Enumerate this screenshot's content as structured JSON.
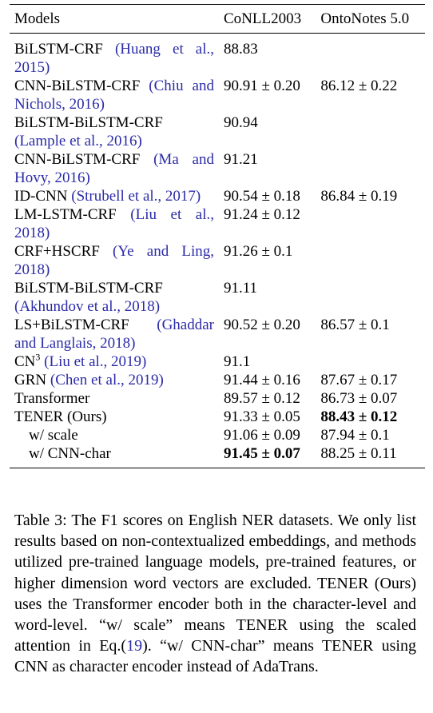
{
  "table": {
    "header": [
      "Models",
      "CoNLL2003",
      "OntoNotes 5.0"
    ],
    "rows": [
      {
        "model": "BiLSTM-CRF",
        "cite": "(Huang et al., 2015)",
        "conll": "88.83"
      },
      {
        "model": "CNN-BiLSTM-CRF",
        "cite": "(Chiu and Nichols, 2016)",
        "conll": "90.91 ± 0.20",
        "onto": "86.12 ± 0.22"
      },
      {
        "model": "BiLSTM-BiLSTM-CRF",
        "cite": "(Lample et al., 2016)",
        "conll": "90.94"
      },
      {
        "model": "CNN-BiLSTM-CRF",
        "cite": "(Ma and Hovy, 2016)",
        "conll": "91.21"
      },
      {
        "model": "ID-CNN",
        "cite": "(Strubell et al., 2017)",
        "conll": "90.54 ± 0.18",
        "onto": "86.84 ± 0.19"
      },
      {
        "model": "LM-LSTM-CRF",
        "cite": "(Liu et al., 2018)",
        "conll": "91.24 ± 0.12"
      },
      {
        "model": "CRF+HSCRF",
        "cite": "(Ye and Ling, 2018)",
        "conll": "91.26 ± 0.1"
      },
      {
        "model": "BiLSTM-BiLSTM-CRF",
        "cite": "(Akhundov et al., 2018)",
        "conll": "91.11"
      },
      {
        "model": "LS+BiLSTM-CRF",
        "cite": "(Ghaddar and Langlais, 2018)",
        "conll": "90.52 ± 0.20",
        "onto": "86.57 ± 0.1"
      },
      {
        "model": "CN",
        "sup": "3",
        "cite": "(Liu et al., 2019)",
        "conll": "91.1"
      },
      {
        "model": "GRN",
        "cite": "(Chen et al., 2019)",
        "conll": "91.44 ± 0.16",
        "onto": "87.67 ± 0.17"
      },
      {
        "model": "Transformer",
        "conll": "89.57 ± 0.12",
        "onto": "86.73 ± 0.07"
      },
      {
        "model": "TENER (Ours)",
        "conll": "91.33 ± 0.05",
        "onto": "88.43 ± 0.12",
        "bold": "onto"
      },
      {
        "model": "w/ scale",
        "conll": "91.06 ± 0.09",
        "onto": "87.94 ± 0.1",
        "indent": true
      },
      {
        "model": "w/ CNN-char",
        "conll": "91.45 ± 0.07",
        "onto": "88.25 ± 0.11",
        "bold": "conll",
        "indent": true
      }
    ]
  },
  "caption": {
    "before": "Table 3: The F1 scores on English NER datasets. We only list results based on non-contextualized embeddings, and methods utilized pre-trained language models, pre-trained features, or higher dimension word vectors are excluded.  TENER (Ours) uses the Transformer encoder both in the character-level and word-level. “w/ scale” means TENER using the scaled attention in Eq.(",
    "ref": "19",
    "after": ").  “w/ CNN-char” means TENER using CNN as character encoder instead of AdaTrans."
  }
}
